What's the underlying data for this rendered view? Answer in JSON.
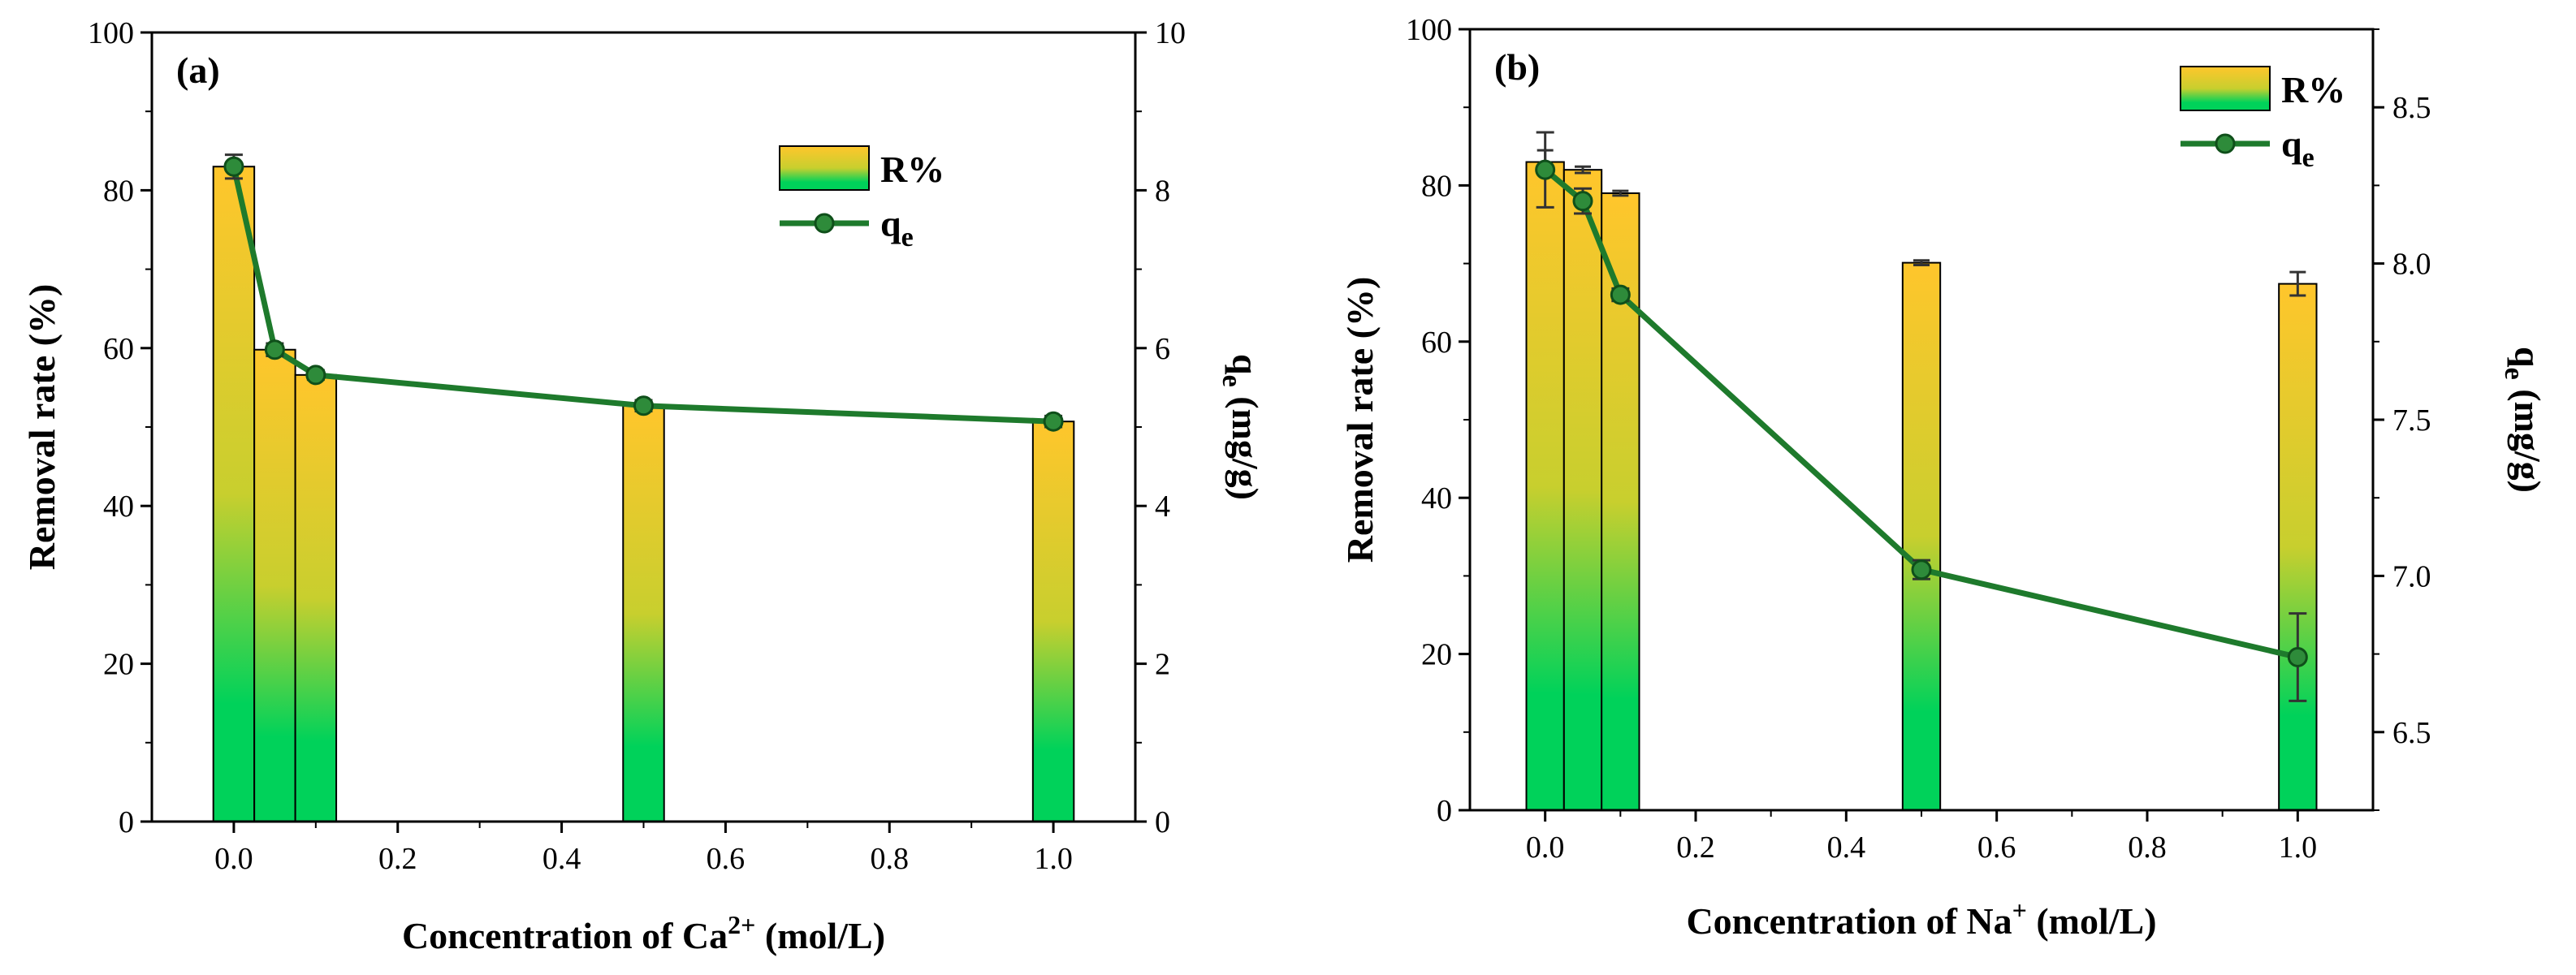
{
  "colors": {
    "bar_top": "#FFC62C",
    "bar_mid": "#C8CF2E",
    "bar_bottom": "#00D25A",
    "line": "#1E7A2C",
    "marker": "#2E8B3A",
    "error": "#333333"
  },
  "chart_data": [
    {
      "type": "bar+line",
      "panel_label": "(a)",
      "xlabel_main": "Concentration of Ca",
      "xlabel_sup": "2+",
      "xlabel_tail": " (mol/L)",
      "ylabel": "Removal rate (%)",
      "y2label_main": "q",
      "y2label_sub": "e",
      "y2label_tail": " (mg/g)",
      "xlim": [
        -0.1,
        1.1
      ],
      "ylim": [
        0,
        100
      ],
      "y2lim": [
        0,
        10
      ],
      "x_ticks": [
        0.0,
        0.2,
        0.4,
        0.6,
        0.8,
        1.0
      ],
      "x_tick_labels": [
        "0.0",
        "0.2",
        "0.4",
        "0.6",
        "0.8",
        "1.0"
      ],
      "y_ticks": [
        0,
        20,
        40,
        60,
        80,
        100
      ],
      "y_tick_labels": [
        "0",
        "20",
        "40",
        "60",
        "80",
        "100"
      ],
      "y2_ticks": [
        0,
        2,
        4,
        6,
        8,
        10
      ],
      "y2_tick_labels": [
        "0",
        "2",
        "4",
        "6",
        "8",
        "10"
      ],
      "bar_width": 0.05,
      "x": [
        0.0,
        0.05,
        0.1,
        0.5,
        1.0
      ],
      "series": [
        {
          "name": "R%",
          "kind": "bar",
          "axis": "y",
          "values": [
            83.0,
            59.8,
            56.6,
            52.7,
            50.7
          ],
          "errors": [
            0,
            0,
            0,
            0,
            0
          ]
        },
        {
          "name": "qe",
          "label_main": "q",
          "label_sub": "e",
          "kind": "line",
          "axis": "y2",
          "values": [
            8.3,
            5.98,
            5.66,
            5.27,
            5.07
          ],
          "errors": [
            0.15,
            0.08,
            0.06,
            0.07,
            0.07
          ]
        }
      ],
      "legend_position": "top-right"
    },
    {
      "type": "bar+line",
      "panel_label": "(b)",
      "xlabel_main": "Concentration of Na",
      "xlabel_sup": "+",
      "xlabel_tail": " (mol/L)",
      "ylabel": "Removal rate (%)",
      "y2label_main": "q",
      "y2label_sub": "e",
      "y2label_tail": " (mg/g)",
      "xlim": [
        -0.1,
        1.1
      ],
      "ylim": [
        0,
        100
      ],
      "y2lim": [
        6.25,
        8.75
      ],
      "x_ticks": [
        0.0,
        0.2,
        0.4,
        0.6,
        0.8,
        1.0
      ],
      "x_tick_labels": [
        "0.0",
        "0.2",
        "0.4",
        "0.6",
        "0.8",
        "1.0"
      ],
      "y_ticks": [
        0,
        20,
        40,
        60,
        80,
        100
      ],
      "y_tick_labels": [
        "0",
        "20",
        "40",
        "60",
        "80",
        "100"
      ],
      "y2_ticks": [
        6.5,
        7.0,
        7.5,
        8.0,
        8.5
      ],
      "y2_tick_labels": [
        "6.5",
        "7.0",
        "7.5",
        "8.0",
        "8.5"
      ],
      "bar_width": 0.05,
      "x": [
        0.0,
        0.05,
        0.1,
        0.5,
        1.0
      ],
      "series": [
        {
          "name": "R%",
          "kind": "bar",
          "axis": "y",
          "values": [
            83.0,
            82.0,
            79.0,
            70.1,
            67.4
          ],
          "errors": [
            1.5,
            0.4,
            0.3,
            0.3,
            1.5
          ]
        },
        {
          "name": "qe",
          "label_main": "q",
          "label_sub": "e",
          "kind": "line",
          "axis": "y2",
          "values": [
            8.3,
            8.2,
            7.9,
            7.02,
            6.74
          ],
          "errors": [
            0.12,
            0.04,
            0.02,
            0.03,
            0.14
          ]
        }
      ],
      "legend_position": "top-right"
    }
  ]
}
